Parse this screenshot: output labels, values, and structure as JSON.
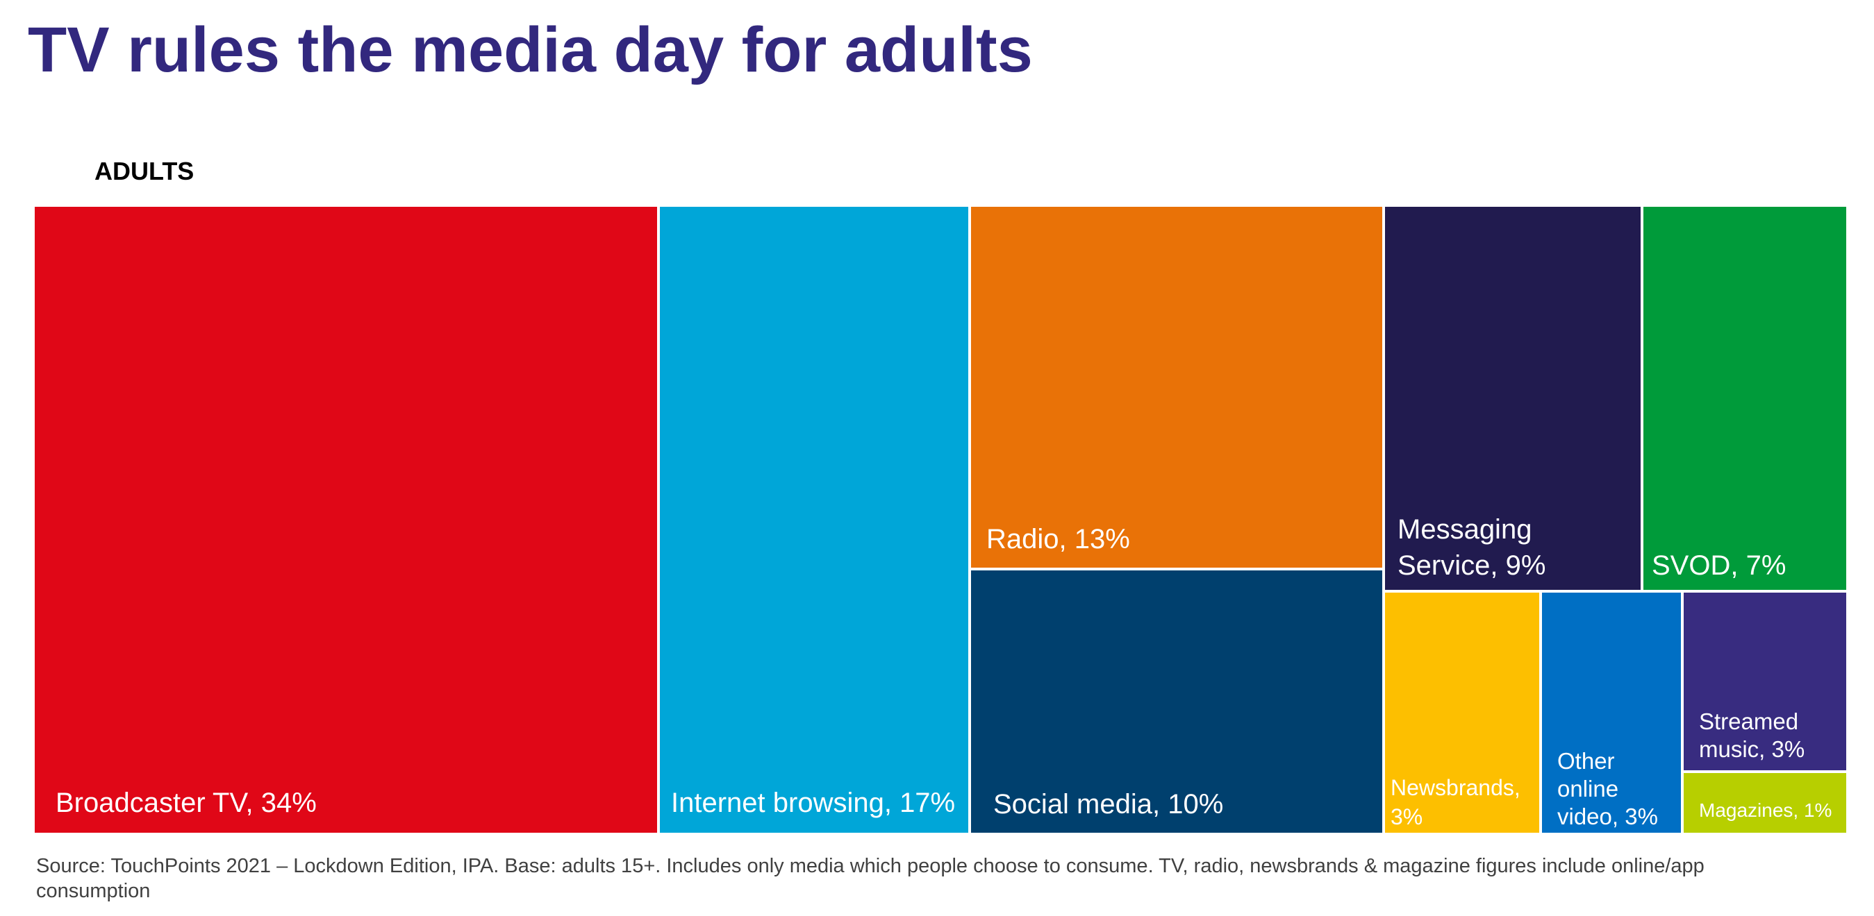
{
  "header": {
    "title": "TV rules the media day for adults"
  },
  "chart_data": {
    "type": "treemap",
    "title": "TV rules the media day for adults",
    "subtitle": "ADULTS",
    "unit": "%",
    "items": [
      {
        "label_lines": [
          "Broadcaster TV, 34%"
        ],
        "name": "Broadcaster TV",
        "value": 34,
        "color": "#e00717"
      },
      {
        "label_lines": [
          "Internet browsing, 17%"
        ],
        "name": "Internet browsing",
        "value": 17,
        "color": "#00a6d8"
      },
      {
        "label_lines": [
          "Radio, 13%"
        ],
        "name": "Radio",
        "value": 13,
        "color": "#e97207"
      },
      {
        "label_lines": [
          "Social media, 10%"
        ],
        "name": "Social media",
        "value": 10,
        "color": "#00406e"
      },
      {
        "label_lines": [
          "Messaging",
          "Service, 9%"
        ],
        "name": "Messaging Service",
        "value": 9,
        "color": "#211b4f"
      },
      {
        "label_lines": [
          "SVOD, 7%"
        ],
        "name": "SVOD",
        "value": 7,
        "color": "#009b3a"
      },
      {
        "label_lines": [
          "Newsbrands,",
          "3%"
        ],
        "name": "Newsbrands",
        "value": 3,
        "color": "#fdbf00"
      },
      {
        "label_lines": [
          "Other",
          "online",
          "video, 3%"
        ],
        "name": "Other online video",
        "value": 3,
        "color": "#006fc4"
      },
      {
        "label_lines": [
          "Streamed",
          "music, 3%"
        ],
        "name": "Streamed music",
        "value": 3,
        "color": "#382c80"
      },
      {
        "label_lines": [
          "Magazines, 1%"
        ],
        "name": "Magazines",
        "value": 1,
        "color": "#b7cf00"
      }
    ]
  },
  "footer": {
    "source": "Source: TouchPoints 2021 – Lockdown Edition, IPA. Base: adults 15+. Includes only media which people choose to consume. TV, radio, newsbrands & magazine figures include online/app consumption"
  }
}
